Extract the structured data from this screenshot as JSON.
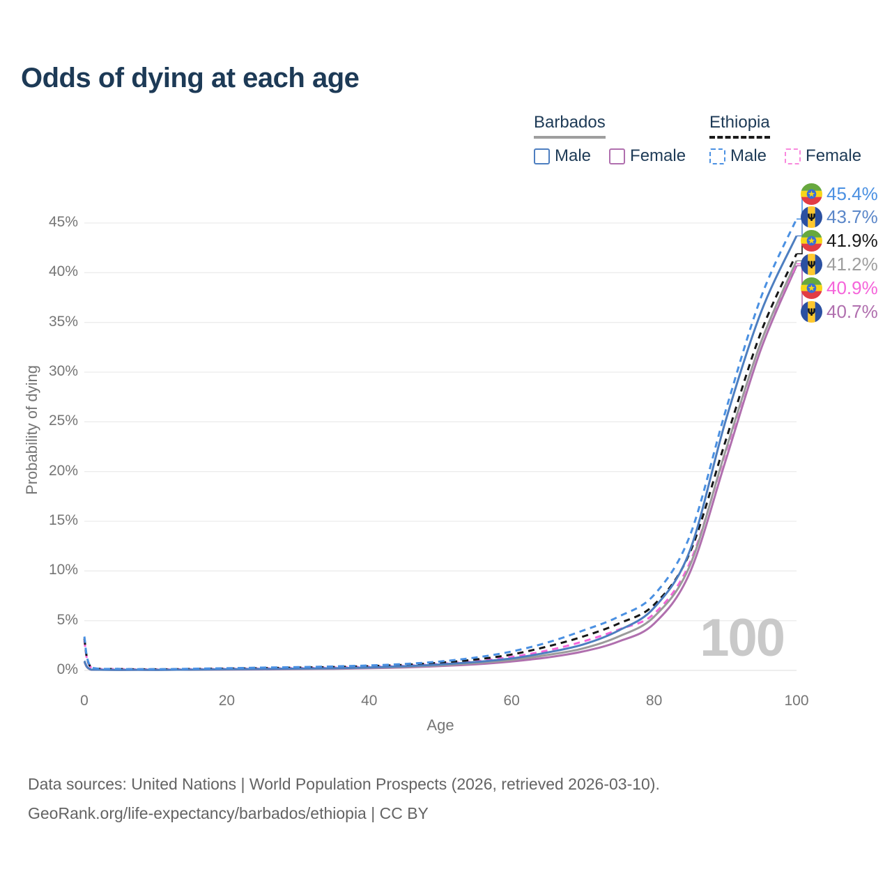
{
  "title": "Odds of dying at each age",
  "legend": {
    "groups": [
      {
        "country": "Barbados",
        "line_style": "solid",
        "underline_color": "#9e9e9e",
        "items": [
          {
            "label": "Male",
            "color": "#4d7ec0",
            "dash": "solid"
          },
          {
            "label": "Female",
            "color": "#b06fae",
            "dash": "solid"
          }
        ]
      },
      {
        "country": "Ethiopia",
        "line_style": "dashed",
        "underline_color": "#1a1a1a",
        "items": [
          {
            "label": "Male",
            "color": "#4a90e2",
            "dash": "dashed"
          },
          {
            "label": "Female",
            "color": "#f988dd",
            "dash": "dashed"
          }
        ]
      }
    ]
  },
  "axes": {
    "y_title": "Probability of dying",
    "x_title": "Age",
    "y_ticks": [
      "0%",
      "5%",
      "10%",
      "15%",
      "20%",
      "25%",
      "30%",
      "35%",
      "40%",
      "45%"
    ],
    "x_ticks": [
      "0",
      "20",
      "40",
      "60",
      "80",
      "100"
    ]
  },
  "watermark_age": "100",
  "end_labels": [
    {
      "country": "Ethiopia",
      "sex": "Male",
      "flag": "ethiopia",
      "value": "45.4%",
      "value_pct": 45.4,
      "color": "#4a90e2"
    },
    {
      "country": "Barbados",
      "sex": "Male",
      "flag": "barbados",
      "value": "43.7%",
      "value_pct": 43.7,
      "color": "#5b87c9"
    },
    {
      "country": "Ethiopia",
      "sex": "Both",
      "flag": "ethiopia",
      "value": "41.9%",
      "value_pct": 41.9,
      "color": "#1a1a1a"
    },
    {
      "country": "Barbados",
      "sex": "Both",
      "flag": "barbados",
      "value": "41.2%",
      "value_pct": 41.2,
      "color": "#9e9e9e"
    },
    {
      "country": "Ethiopia",
      "sex": "Female",
      "flag": "ethiopia",
      "value": "40.9%",
      "value_pct": 40.9,
      "color": "#f564da"
    },
    {
      "country": "Barbados",
      "sex": "Female",
      "flag": "barbados",
      "value": "40.7%",
      "value_pct": 40.7,
      "color": "#b06fae"
    }
  ],
  "footer": {
    "line1": "Data sources: United Nations | World Population Prospects (2026, retrieved 2026-03-10).",
    "line2": "GeoRank.org/life-expectancy/barbados/ethiopia | CC BY"
  },
  "chart_data": {
    "type": "line",
    "title": "Odds of dying at each age",
    "xlabel": "Age",
    "ylabel": "Probability of dying",
    "x_range": [
      0,
      100
    ],
    "y_range_pct": [
      0,
      45
    ],
    "grid": "horizontal",
    "legend_position": "top-right",
    "ages": [
      0,
      1,
      5,
      10,
      15,
      20,
      25,
      30,
      35,
      40,
      45,
      50,
      55,
      60,
      65,
      70,
      75,
      80,
      85,
      90,
      95,
      100
    ],
    "series": [
      {
        "name": "Ethiopia Male",
        "country": "Ethiopia",
        "sex": "Male",
        "color": "#4a90e2",
        "dash": "dashed",
        "final_value_pct": 45.4,
        "values_pct": [
          3.4,
          0.3,
          0.15,
          0.12,
          0.16,
          0.22,
          0.28,
          0.33,
          0.4,
          0.5,
          0.65,
          0.9,
          1.3,
          1.9,
          2.8,
          4.0,
          5.4,
          7.6,
          13.5,
          26.0,
          37.5,
          45.4
        ]
      },
      {
        "name": "Barbados Male",
        "country": "Barbados",
        "sex": "Male",
        "color": "#4d7ec0",
        "dash": "solid",
        "final_value_pct": 43.7,
        "values_pct": [
          0.95,
          0.08,
          0.05,
          0.05,
          0.08,
          0.12,
          0.15,
          0.18,
          0.22,
          0.3,
          0.42,
          0.6,
          0.85,
          1.2,
          1.8,
          2.6,
          4.0,
          6.3,
          12.0,
          25.0,
          36.0,
          43.7
        ]
      },
      {
        "name": "Ethiopia Both sexes",
        "country": "Ethiopia",
        "sex": "Both",
        "color": "#161616",
        "dash": "dashed",
        "final_value_pct": 41.9,
        "values_pct": [
          3.2,
          0.28,
          0.14,
          0.11,
          0.14,
          0.18,
          0.23,
          0.28,
          0.34,
          0.43,
          0.56,
          0.78,
          1.1,
          1.6,
          2.4,
          3.4,
          4.7,
          6.6,
          11.8,
          23.0,
          34.0,
          41.9
        ]
      },
      {
        "name": "Barbados Both sexes",
        "country": "Barbados",
        "sex": "Both",
        "color": "#9b9b9b",
        "dash": "solid",
        "final_value_pct": 41.2,
        "values_pct": [
          0.9,
          0.07,
          0.05,
          0.05,
          0.07,
          0.1,
          0.13,
          0.16,
          0.19,
          0.26,
          0.36,
          0.52,
          0.74,
          1.05,
          1.55,
          2.2,
          3.4,
          5.4,
          10.5,
          22.0,
          33.0,
          41.2
        ]
      },
      {
        "name": "Ethiopia Female",
        "country": "Ethiopia",
        "sex": "Female",
        "color": "#f564da",
        "dash": "dashed",
        "final_value_pct": 40.9,
        "values_pct": [
          3.0,
          0.26,
          0.13,
          0.1,
          0.12,
          0.15,
          0.19,
          0.23,
          0.28,
          0.36,
          0.47,
          0.66,
          0.93,
          1.35,
          2.0,
          2.9,
          4.1,
          5.7,
          10.8,
          21.8,
          33.0,
          40.9
        ]
      },
      {
        "name": "Barbados Female",
        "country": "Barbados",
        "sex": "Female",
        "color": "#b06fae",
        "dash": "solid",
        "final_value_pct": 40.7,
        "values_pct": [
          0.85,
          0.06,
          0.04,
          0.04,
          0.06,
          0.08,
          0.1,
          0.13,
          0.16,
          0.22,
          0.3,
          0.44,
          0.62,
          0.9,
          1.3,
          1.9,
          2.9,
          4.7,
          9.8,
          21.0,
          32.3,
          40.7
        ]
      }
    ]
  }
}
